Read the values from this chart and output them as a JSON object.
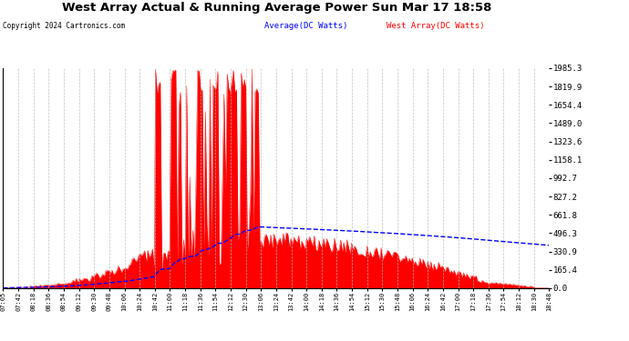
{
  "title": "West Array Actual & Running Average Power Sun Mar 17 18:58",
  "copyright": "Copyright 2024 Cartronics.com",
  "legend_avg": "Average(DC Watts)",
  "legend_west": "West Array(DC Watts)",
  "ylabel_values": [
    0.0,
    165.4,
    330.9,
    496.3,
    661.8,
    827.2,
    992.7,
    1158.1,
    1323.6,
    1489.0,
    1654.4,
    1819.9,
    1985.3
  ],
  "ymax": 1985.3,
  "ymin": 0.0,
  "background_color": "#ffffff",
  "plot_bg_color": "#ffffff",
  "grid_color": "#bbbbbb",
  "red_color": "#ff0000",
  "blue_color": "#0000ff",
  "title_color": "#000000",
  "x_tick_labels": [
    "07:05",
    "07:42",
    "08:18",
    "08:36",
    "08:54",
    "09:12",
    "09:30",
    "09:48",
    "10:06",
    "10:24",
    "10:42",
    "11:00",
    "11:18",
    "11:36",
    "11:54",
    "12:12",
    "12:30",
    "13:06",
    "13:24",
    "13:42",
    "14:00",
    "14:18",
    "14:36",
    "14:54",
    "15:12",
    "15:30",
    "15:48",
    "16:06",
    "16:24",
    "16:42",
    "17:00",
    "17:18",
    "17:36",
    "17:54",
    "18:12",
    "18:30",
    "18:48"
  ]
}
